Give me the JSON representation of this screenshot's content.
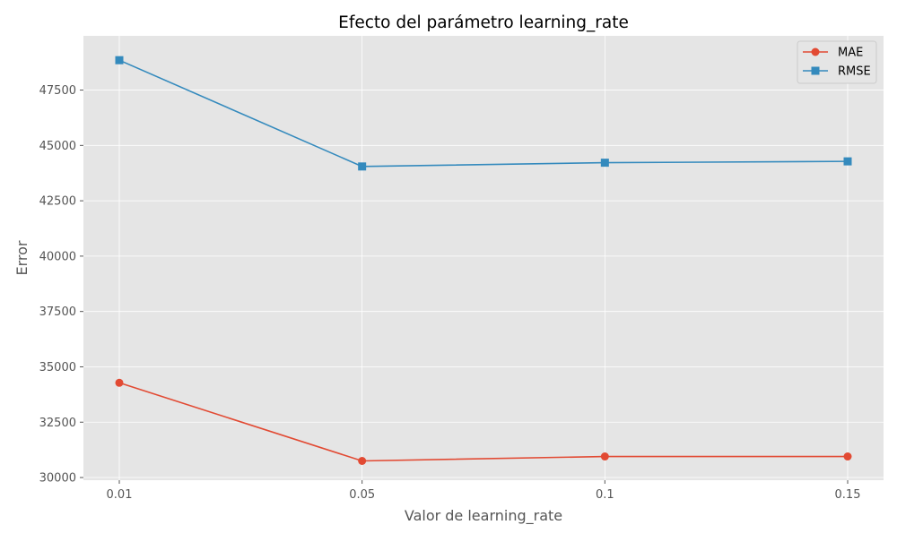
{
  "chart_data": {
    "type": "line",
    "title": "Efecto del parámetro learning_rate",
    "xlabel": "Valor de learning_rate",
    "ylabel": "Error",
    "categories": [
      "0.01",
      "0.05",
      "0.1",
      "0.15"
    ],
    "yticks": [
      30000,
      32500,
      35000,
      37500,
      40000,
      42500,
      45000,
      47500
    ],
    "ytick_labels": [
      "30000",
      "32500",
      "35000",
      "37500",
      "40000",
      "42500",
      "45000",
      "47500"
    ],
    "ylim": [
      29880,
      49950
    ],
    "grid": true,
    "legend_position": "top-right",
    "series": [
      {
        "name": "MAE",
        "marker": "circle",
        "color": "#E24A33",
        "values": [
          34280,
          30750,
          30950,
          30950
        ]
      },
      {
        "name": "RMSE",
        "marker": "square",
        "color": "#348ABD",
        "values": [
          48850,
          44050,
          44220,
          44280
        ]
      }
    ],
    "colors": {
      "plot_background": "#E5E5E5",
      "grid": "#FFFFFF",
      "tick": "#555555"
    }
  }
}
